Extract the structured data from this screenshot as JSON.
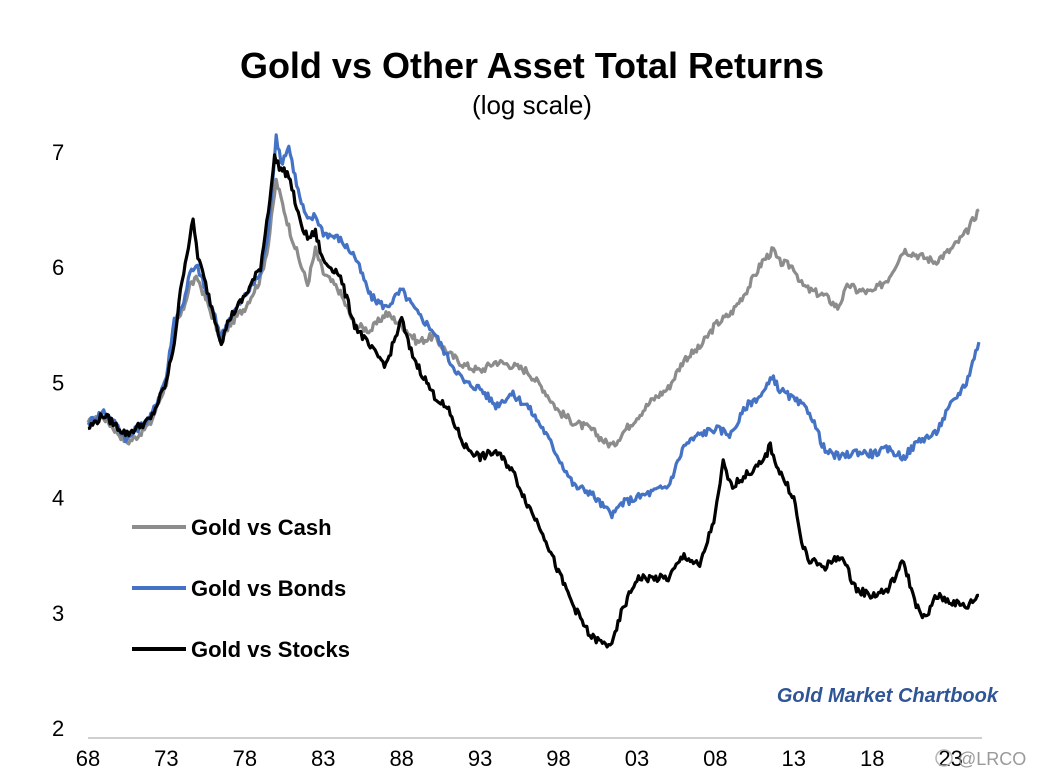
{
  "chart_data": {
    "type": "line",
    "title": "Gold vs Other Asset Total Returns",
    "subtitle": "(log scale)",
    "xlabel": "",
    "ylabel": "",
    "y_scale_note": "log scale",
    "xlim": [
      1968,
      2025
    ],
    "ylim": [
      2,
      7
    ],
    "x_ticks": [
      1968,
      1973,
      1978,
      1983,
      1988,
      1993,
      1998,
      2003,
      2008,
      2013,
      2018,
      2023
    ],
    "x_tick_labels": [
      "68",
      "73",
      "78",
      "83",
      "88",
      "93",
      "98",
      "03",
      "08",
      "13",
      "18",
      "23"
    ],
    "y_ticks": [
      2,
      3,
      4,
      5,
      6,
      7
    ],
    "y_tick_labels": [
      "2",
      "3",
      "4",
      "5",
      "6",
      "7"
    ],
    "grid": false,
    "legend_position": "bottom-left",
    "source_text": "Gold Market Chartbook",
    "watermark": "@LRCO",
    "colors": {
      "cash": "#8c8c8c",
      "bonds": "#4472c4",
      "stocks": "#000000",
      "source": "#2f5597"
    },
    "series": [
      {
        "name": "Gold vs Cash",
        "color": "#8c8c8c",
        "points": [
          [
            1968.0,
            4.65
          ],
          [
            1969.0,
            4.7
          ],
          [
            1970.0,
            4.55
          ],
          [
            1970.5,
            4.48
          ],
          [
            1971.0,
            4.52
          ],
          [
            1972.0,
            4.65
          ],
          [
            1973.0,
            5.0
          ],
          [
            1973.5,
            5.5
          ],
          [
            1974.0,
            5.6
          ],
          [
            1974.5,
            5.85
          ],
          [
            1975.0,
            5.9
          ],
          [
            1976.0,
            5.55
          ],
          [
            1976.5,
            5.35
          ],
          [
            1977.0,
            5.5
          ],
          [
            1978.0,
            5.65
          ],
          [
            1979.0,
            5.9
          ],
          [
            1979.5,
            6.2
          ],
          [
            1980.0,
            6.75
          ],
          [
            1980.3,
            6.6
          ],
          [
            1980.8,
            6.35
          ],
          [
            1981.5,
            6.05
          ],
          [
            1982.0,
            5.85
          ],
          [
            1982.5,
            6.15
          ],
          [
            1983.0,
            5.95
          ],
          [
            1984.0,
            5.8
          ],
          [
            1985.0,
            5.5
          ],
          [
            1986.0,
            5.45
          ],
          [
            1987.0,
            5.6
          ],
          [
            1988.0,
            5.5
          ],
          [
            1989.0,
            5.35
          ],
          [
            1990.0,
            5.4
          ],
          [
            1991.0,
            5.25
          ],
          [
            1992.0,
            5.15
          ],
          [
            1993.0,
            5.1
          ],
          [
            1994.0,
            5.18
          ],
          [
            1995.0,
            5.15
          ],
          [
            1996.0,
            5.1
          ],
          [
            1997.0,
            4.95
          ],
          [
            1998.0,
            4.75
          ],
          [
            1999.0,
            4.65
          ],
          [
            2000.0,
            4.6
          ],
          [
            2001.0,
            4.48
          ],
          [
            2001.5,
            4.45
          ],
          [
            2002.0,
            4.55
          ],
          [
            2003.0,
            4.7
          ],
          [
            2004.0,
            4.85
          ],
          [
            2005.0,
            4.95
          ],
          [
            2006.0,
            5.2
          ],
          [
            2007.0,
            5.3
          ],
          [
            2008.0,
            5.5
          ],
          [
            2009.0,
            5.6
          ],
          [
            2010.0,
            5.8
          ],
          [
            2011.0,
            6.05
          ],
          [
            2011.7,
            6.15
          ],
          [
            2012.0,
            6.05
          ],
          [
            2013.0,
            6.0
          ],
          [
            2013.5,
            5.85
          ],
          [
            2014.0,
            5.8
          ],
          [
            2015.0,
            5.75
          ],
          [
            2015.8,
            5.65
          ],
          [
            2016.5,
            5.85
          ],
          [
            2017.0,
            5.8
          ],
          [
            2018.0,
            5.78
          ],
          [
            2019.0,
            5.9
          ],
          [
            2020.0,
            6.15
          ],
          [
            2021.0,
            6.1
          ],
          [
            2022.0,
            6.05
          ],
          [
            2023.0,
            6.15
          ],
          [
            2024.0,
            6.3
          ],
          [
            2024.8,
            6.5
          ]
        ]
      },
      {
        "name": "Gold vs Bonds",
        "color": "#4472c4",
        "points": [
          [
            1968.0,
            4.65
          ],
          [
            1969.0,
            4.75
          ],
          [
            1970.0,
            4.6
          ],
          [
            1970.5,
            4.5
          ],
          [
            1971.0,
            4.58
          ],
          [
            1972.0,
            4.7
          ],
          [
            1973.0,
            5.05
          ],
          [
            1973.5,
            5.55
          ],
          [
            1974.0,
            5.65
          ],
          [
            1974.5,
            5.95
          ],
          [
            1975.0,
            6.0
          ],
          [
            1976.0,
            5.6
          ],
          [
            1976.5,
            5.4
          ],
          [
            1977.0,
            5.55
          ],
          [
            1978.0,
            5.75
          ],
          [
            1979.0,
            5.95
          ],
          [
            1979.5,
            6.3
          ],
          [
            1980.0,
            7.15
          ],
          [
            1980.3,
            6.9
          ],
          [
            1980.8,
            7.05
          ],
          [
            1981.5,
            6.6
          ],
          [
            1982.0,
            6.4
          ],
          [
            1982.5,
            6.45
          ],
          [
            1983.0,
            6.3
          ],
          [
            1984.0,
            6.25
          ],
          [
            1985.0,
            6.1
          ],
          [
            1986.0,
            5.75
          ],
          [
            1987.0,
            5.65
          ],
          [
            1988.0,
            5.8
          ],
          [
            1989.0,
            5.6
          ],
          [
            1990.0,
            5.45
          ],
          [
            1991.0,
            5.2
          ],
          [
            1992.0,
            5.0
          ],
          [
            1993.0,
            4.95
          ],
          [
            1994.0,
            4.8
          ],
          [
            1995.0,
            4.9
          ],
          [
            1996.0,
            4.8
          ],
          [
            1997.0,
            4.6
          ],
          [
            1998.0,
            4.35
          ],
          [
            1999.0,
            4.1
          ],
          [
            2000.0,
            4.05
          ],
          [
            2001.0,
            3.9
          ],
          [
            2001.5,
            3.85
          ],
          [
            2002.0,
            3.95
          ],
          [
            2003.0,
            4.0
          ],
          [
            2004.0,
            4.05
          ],
          [
            2005.0,
            4.1
          ],
          [
            2006.0,
            4.45
          ],
          [
            2007.0,
            4.55
          ],
          [
            2008.0,
            4.6
          ],
          [
            2009.0,
            4.55
          ],
          [
            2010.0,
            4.8
          ],
          [
            2011.0,
            4.9
          ],
          [
            2011.7,
            5.05
          ],
          [
            2012.0,
            4.95
          ],
          [
            2013.0,
            4.85
          ],
          [
            2014.0,
            4.75
          ],
          [
            2015.0,
            4.4
          ],
          [
            2016.0,
            4.35
          ],
          [
            2017.0,
            4.4
          ],
          [
            2018.0,
            4.38
          ],
          [
            2019.0,
            4.42
          ],
          [
            2020.0,
            4.35
          ],
          [
            2021.0,
            4.5
          ],
          [
            2022.0,
            4.55
          ],
          [
            2023.0,
            4.8
          ],
          [
            2024.0,
            5.0
          ],
          [
            2024.8,
            5.35
          ]
        ]
      },
      {
        "name": "Gold vs Stocks",
        "color": "#000000",
        "points": [
          [
            1968.0,
            4.6
          ],
          [
            1969.0,
            4.72
          ],
          [
            1970.0,
            4.6
          ],
          [
            1970.5,
            4.55
          ],
          [
            1971.0,
            4.6
          ],
          [
            1972.0,
            4.68
          ],
          [
            1973.0,
            5.0
          ],
          [
            1973.5,
            5.35
          ],
          [
            1974.0,
            5.9
          ],
          [
            1974.7,
            6.4
          ],
          [
            1975.0,
            6.1
          ],
          [
            1976.0,
            5.6
          ],
          [
            1976.5,
            5.35
          ],
          [
            1977.0,
            5.55
          ],
          [
            1978.0,
            5.75
          ],
          [
            1979.0,
            6.0
          ],
          [
            1979.5,
            6.5
          ],
          [
            1979.9,
            6.95
          ],
          [
            1980.3,
            6.85
          ],
          [
            1980.8,
            6.8
          ],
          [
            1981.5,
            6.4
          ],
          [
            1982.0,
            6.25
          ],
          [
            1982.5,
            6.3
          ],
          [
            1983.0,
            6.05
          ],
          [
            1984.0,
            5.95
          ],
          [
            1985.0,
            5.5
          ],
          [
            1986.0,
            5.3
          ],
          [
            1987.0,
            5.15
          ],
          [
            1988.0,
            5.55
          ],
          [
            1988.5,
            5.3
          ],
          [
            1989.0,
            5.15
          ],
          [
            1990.0,
            4.9
          ],
          [
            1991.0,
            4.75
          ],
          [
            1992.0,
            4.45
          ],
          [
            1993.0,
            4.35
          ],
          [
            1994.0,
            4.4
          ],
          [
            1995.0,
            4.25
          ],
          [
            1996.0,
            3.95
          ],
          [
            1997.0,
            3.7
          ],
          [
            1998.0,
            3.35
          ],
          [
            1999.0,
            3.05
          ],
          [
            2000.0,
            2.8
          ],
          [
            2001.0,
            2.72
          ],
          [
            2001.5,
            2.75
          ],
          [
            2002.0,
            3.0
          ],
          [
            2003.0,
            3.3
          ],
          [
            2004.0,
            3.3
          ],
          [
            2005.0,
            3.3
          ],
          [
            2006.0,
            3.5
          ],
          [
            2007.0,
            3.4
          ],
          [
            2008.0,
            3.85
          ],
          [
            2008.5,
            4.3
          ],
          [
            2009.0,
            4.1
          ],
          [
            2010.0,
            4.2
          ],
          [
            2011.0,
            4.3
          ],
          [
            2011.5,
            4.45
          ],
          [
            2012.0,
            4.25
          ],
          [
            2013.0,
            4.0
          ],
          [
            2013.5,
            3.6
          ],
          [
            2014.0,
            3.45
          ],
          [
            2015.0,
            3.4
          ],
          [
            2016.0,
            3.5
          ],
          [
            2017.0,
            3.2
          ],
          [
            2018.0,
            3.15
          ],
          [
            2019.0,
            3.2
          ],
          [
            2020.0,
            3.45
          ],
          [
            2020.5,
            3.2
          ],
          [
            2021.0,
            3.0
          ],
          [
            2021.5,
            2.95
          ],
          [
            2022.0,
            3.15
          ],
          [
            2023.0,
            3.1
          ],
          [
            2024.0,
            3.05
          ],
          [
            2024.8,
            3.15
          ]
        ]
      }
    ]
  }
}
